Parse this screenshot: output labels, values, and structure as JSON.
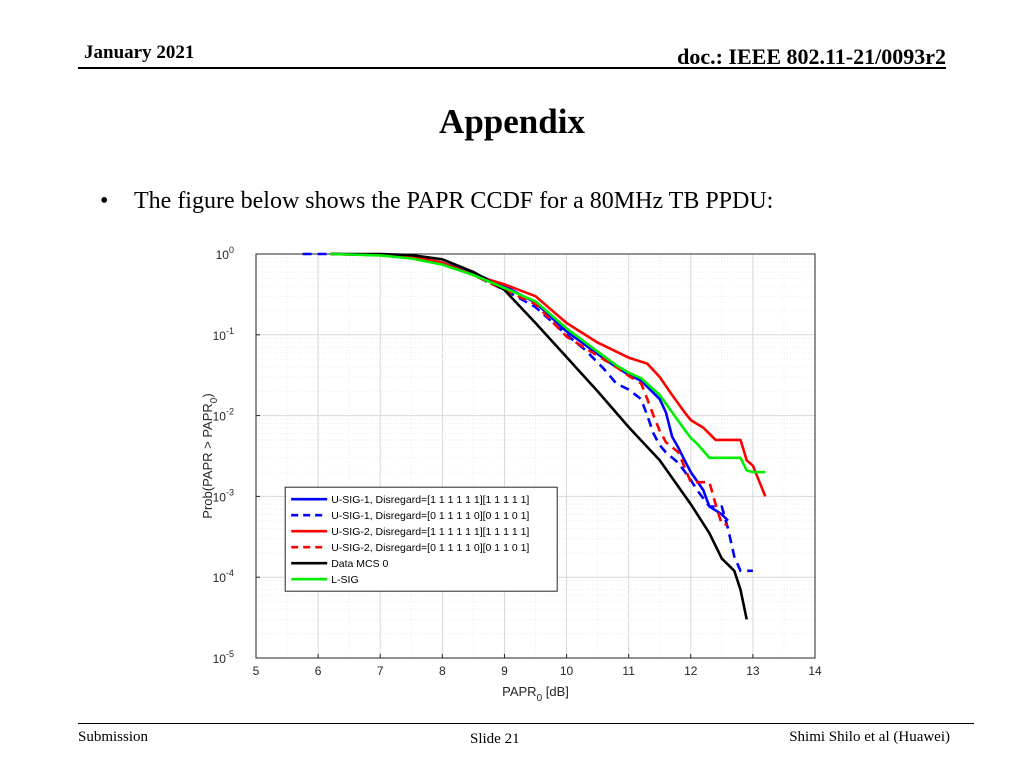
{
  "header": {
    "date": "January 2021",
    "doc": "doc.: IEEE 802.11-21/0093r2"
  },
  "slide": {
    "title": "Appendix",
    "bullet": "The figure below shows the PAPR CCDF for a 80MHz TB PPDU:"
  },
  "footer": {
    "left": "Submission",
    "center": "Slide 21",
    "right": "Shimi Shilo et al (Huawei)"
  },
  "chart_data": {
    "type": "line",
    "title": "",
    "xlabel": "PAPR",
    "xlabel_sub": "0",
    "xlabel_unit": " [dB]",
    "ylabel": "Prob(PAPR > PAPR",
    "ylabel_sub": "0",
    "ylabel_end": ")",
    "xlim": [
      5,
      14
    ],
    "ylim": [
      1e-05,
      1
    ],
    "yscale": "log",
    "grid": true,
    "xticks": [
      5,
      6,
      7,
      8,
      9,
      10,
      11,
      12,
      13,
      14
    ],
    "yticks": [
      {
        "exp": "0",
        "value": 1
      },
      {
        "exp": "-1",
        "value": 0.1
      },
      {
        "exp": "-2",
        "value": 0.01
      },
      {
        "exp": "-3",
        "value": 0.001
      },
      {
        "exp": "-4",
        "value": 0.0001
      },
      {
        "exp": "-5",
        "value": 1e-05
      }
    ],
    "legend_position": "lower-left",
    "series": [
      {
        "name": "U-SIG-1, Disregard=[1 1 1 1 1 1][1 1 1 1 1]",
        "color": "#0000ff",
        "dash": "solid",
        "points": [
          [
            6.2,
            1
          ],
          [
            7,
            0.97
          ],
          [
            7.5,
            0.92
          ],
          [
            8,
            0.78
          ],
          [
            8.5,
            0.58
          ],
          [
            9,
            0.4
          ],
          [
            9.5,
            0.25
          ],
          [
            10,
            0.11
          ],
          [
            10.5,
            0.058
          ],
          [
            10.8,
            0.04
          ],
          [
            11,
            0.032
          ],
          [
            11.2,
            0.027
          ],
          [
            11.5,
            0.016
          ],
          [
            11.6,
            0.011
          ],
          [
            11.7,
            0.0055
          ],
          [
            11.8,
            0.004
          ],
          [
            11.9,
            0.0028
          ],
          [
            12,
            0.002
          ],
          [
            12.2,
            0.0012
          ],
          [
            12.3,
            0.00075
          ],
          [
            12.5,
            0.0006
          ],
          [
            12.6,
            0.0005
          ]
        ]
      },
      {
        "name": "U-SIG-1, Disregard=[0 1 1 1 1 0][0 1 1 0 1]",
        "color": "#0000ff",
        "dash": "dashed",
        "points": [
          [
            5.75,
            1
          ],
          [
            6.2,
            1
          ],
          [
            7,
            0.98
          ],
          [
            7.5,
            0.93
          ],
          [
            8,
            0.78
          ],
          [
            8.5,
            0.55
          ],
          [
            9,
            0.36
          ],
          [
            9.5,
            0.22
          ],
          [
            10,
            0.1
          ],
          [
            10.3,
            0.065
          ],
          [
            10.6,
            0.038
          ],
          [
            10.8,
            0.025
          ],
          [
            11,
            0.021
          ],
          [
            11.2,
            0.016
          ],
          [
            11.3,
            0.01
          ],
          [
            11.4,
            0.006
          ],
          [
            11.5,
            0.0043
          ],
          [
            11.6,
            0.0035
          ],
          [
            11.8,
            0.0026
          ],
          [
            12,
            0.0016
          ],
          [
            12.1,
            0.0012
          ],
          [
            12.3,
            0.00075
          ],
          [
            12.5,
            0.00075
          ],
          [
            12.6,
            0.0004
          ],
          [
            12.7,
            0.00018
          ],
          [
            12.8,
            0.00012
          ],
          [
            13,
            0.00012
          ]
        ]
      },
      {
        "name": "U-SIG-2, Disregard=[1 1 1 1 1 1][1 1 1 1 1]",
        "color": "#ff0000",
        "dash": "solid",
        "points": [
          [
            6.2,
            1
          ],
          [
            7,
            0.97
          ],
          [
            7.5,
            0.92
          ],
          [
            8,
            0.78
          ],
          [
            8.5,
            0.55
          ],
          [
            9,
            0.42
          ],
          [
            9.5,
            0.3
          ],
          [
            10,
            0.14
          ],
          [
            10.5,
            0.08
          ],
          [
            10.8,
            0.062
          ],
          [
            11,
            0.052
          ],
          [
            11.3,
            0.044
          ],
          [
            11.5,
            0.03
          ],
          [
            11.7,
            0.018
          ],
          [
            11.9,
            0.011
          ],
          [
            12,
            0.0088
          ],
          [
            12.2,
            0.0071
          ],
          [
            12.4,
            0.005
          ],
          [
            12.6,
            0.005
          ],
          [
            12.8,
            0.005
          ],
          [
            12.9,
            0.0028
          ],
          [
            13,
            0.0024
          ],
          [
            13.2,
            0.001
          ]
        ]
      },
      {
        "name": "U-SIG-2, Disregard=[0 1 1 1 1 0][0 1 1 0 1]",
        "color": "#ff0000",
        "dash": "dashed",
        "points": [
          [
            6.2,
            1
          ],
          [
            7,
            0.97
          ],
          [
            7.5,
            0.92
          ],
          [
            8,
            0.78
          ],
          [
            8.5,
            0.55
          ],
          [
            9,
            0.36
          ],
          [
            9.5,
            0.24
          ],
          [
            10,
            0.095
          ],
          [
            10.5,
            0.055
          ],
          [
            10.8,
            0.04
          ],
          [
            11,
            0.031
          ],
          [
            11.2,
            0.025
          ],
          [
            11.3,
            0.016
          ],
          [
            11.4,
            0.01
          ],
          [
            11.5,
            0.0065
          ],
          [
            11.6,
            0.0047
          ],
          [
            11.8,
            0.0035
          ],
          [
            12,
            0.0015
          ],
          [
            12.3,
            0.0015
          ],
          [
            12.4,
            0.0008
          ],
          [
            12.5,
            0.00045
          ],
          [
            12.6,
            0.00045
          ]
        ]
      },
      {
        "name": "Data MCS 0",
        "color": "#000000",
        "dash": "solid",
        "points": [
          [
            6.2,
            1
          ],
          [
            7,
            1
          ],
          [
            7.5,
            0.97
          ],
          [
            8,
            0.86
          ],
          [
            8.5,
            0.6
          ],
          [
            9,
            0.36
          ],
          [
            9.5,
            0.14
          ],
          [
            10,
            0.053
          ],
          [
            10.5,
            0.02
          ],
          [
            11,
            0.0072
          ],
          [
            11.5,
            0.0028
          ],
          [
            12,
            0.0008
          ],
          [
            12.3,
            0.00035
          ],
          [
            12.5,
            0.00017
          ],
          [
            12.7,
            0.00012
          ],
          [
            12.8,
            7e-05
          ],
          [
            12.9,
            3e-05
          ]
        ]
      },
      {
        "name": "L-SIG",
        "color": "#00ee00",
        "dash": "solid",
        "points": [
          [
            6.2,
            1
          ],
          [
            7,
            0.96
          ],
          [
            7.5,
            0.88
          ],
          [
            8,
            0.74
          ],
          [
            8.5,
            0.55
          ],
          [
            9,
            0.38
          ],
          [
            9.5,
            0.26
          ],
          [
            10,
            0.12
          ],
          [
            10.5,
            0.062
          ],
          [
            10.8,
            0.042
          ],
          [
            11,
            0.034
          ],
          [
            11.2,
            0.029
          ],
          [
            11.5,
            0.018
          ],
          [
            11.7,
            0.011
          ],
          [
            11.9,
            0.0067
          ],
          [
            12,
            0.0053
          ],
          [
            12.1,
            0.0045
          ],
          [
            12.3,
            0.003
          ],
          [
            12.5,
            0.003
          ],
          [
            12.8,
            0.003
          ],
          [
            12.9,
            0.0021
          ],
          [
            13,
            0.002
          ],
          [
            13.2,
            0.002
          ]
        ]
      }
    ]
  }
}
